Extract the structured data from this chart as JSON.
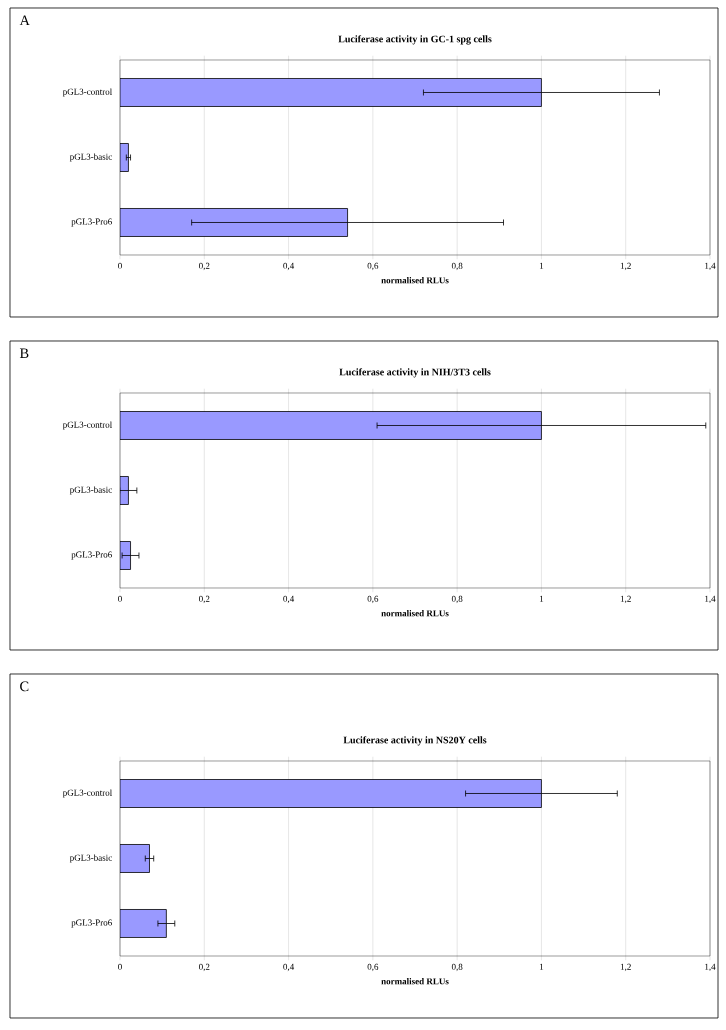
{
  "chart_data": [
    {
      "type": "bar",
      "orientation": "horizontal",
      "title": "Luciferase activity in GC-1 spg cells",
      "xlabel": "normalised RLUs",
      "annotations": [
        "A"
      ],
      "categories": [
        "pGL3-control",
        "pGL3-basic",
        "pGL3-Pro6"
      ],
      "values": [
        1,
        0.02,
        0.54
      ],
      "errors": [
        0.28,
        0.005,
        0.37
      ],
      "color": "#9999ff",
      "xlim": [
        0,
        1.4
      ],
      "xticks": [
        0,
        {
          "value": 0.2,
          "label": "0,2"
        },
        {
          "value": 0.4,
          "label": "0,4"
        },
        {
          "value": 0.6,
          "label": "0,6"
        },
        {
          "value": 0.8,
          "label": "0,8"
        },
        1,
        {
          "value": 1.2,
          "label": "1,2"
        },
        {
          "value": 1.4,
          "label": "1,4"
        }
      ],
      "grid": "x"
    },
    {
      "type": "bar",
      "orientation": "horizontal",
      "title": "Luciferase activity in NIH/3T3 cells",
      "xlabel": "normalised RLUs",
      "annotations": [
        "B"
      ],
      "categories": [
        "pGL3-control",
        "pGL3-basic",
        "pGL3-Pro6"
      ],
      "values": [
        1,
        0.02,
        0.025
      ],
      "errors": [
        0.39,
        0.02,
        0.02
      ],
      "color": "#9999ff",
      "xlim": [
        0,
        1.4
      ],
      "xticks": [
        0,
        {
          "value": 0.2,
          "label": "0,2"
        },
        {
          "value": 0.4,
          "label": "0,4"
        },
        {
          "value": 0.6,
          "label": "0,6"
        },
        {
          "value": 0.8,
          "label": "0,8"
        },
        1,
        {
          "value": 1.2,
          "label": "1,2"
        },
        {
          "value": 1.4,
          "label": "1,4"
        }
      ],
      "grid": "x"
    },
    {
      "type": "bar",
      "orientation": "horizontal",
      "title": "Luciferase activity in NS20Y cells",
      "xlabel": "normalised RLUs",
      "annotations": [
        "C"
      ],
      "categories": [
        "pGL3-control",
        "pGL3-basic",
        "pGL3-Pro6"
      ],
      "values": [
        1,
        0.07,
        0.11
      ],
      "errors": [
        0.18,
        0.01,
        0.02
      ],
      "color": "#9999ff",
      "xlim": [
        0,
        1.4
      ],
      "xticks": [
        0,
        {
          "value": 0.2,
          "label": "0,2"
        },
        {
          "value": 0.4,
          "label": "0,4"
        },
        {
          "value": 0.6,
          "label": "0,6"
        },
        {
          "value": 0.8,
          "label": "0,8"
        },
        1,
        {
          "value": 1.2,
          "label": "1,2"
        },
        {
          "value": 1.4,
          "label": "1,4"
        }
      ],
      "grid": "x"
    }
  ]
}
